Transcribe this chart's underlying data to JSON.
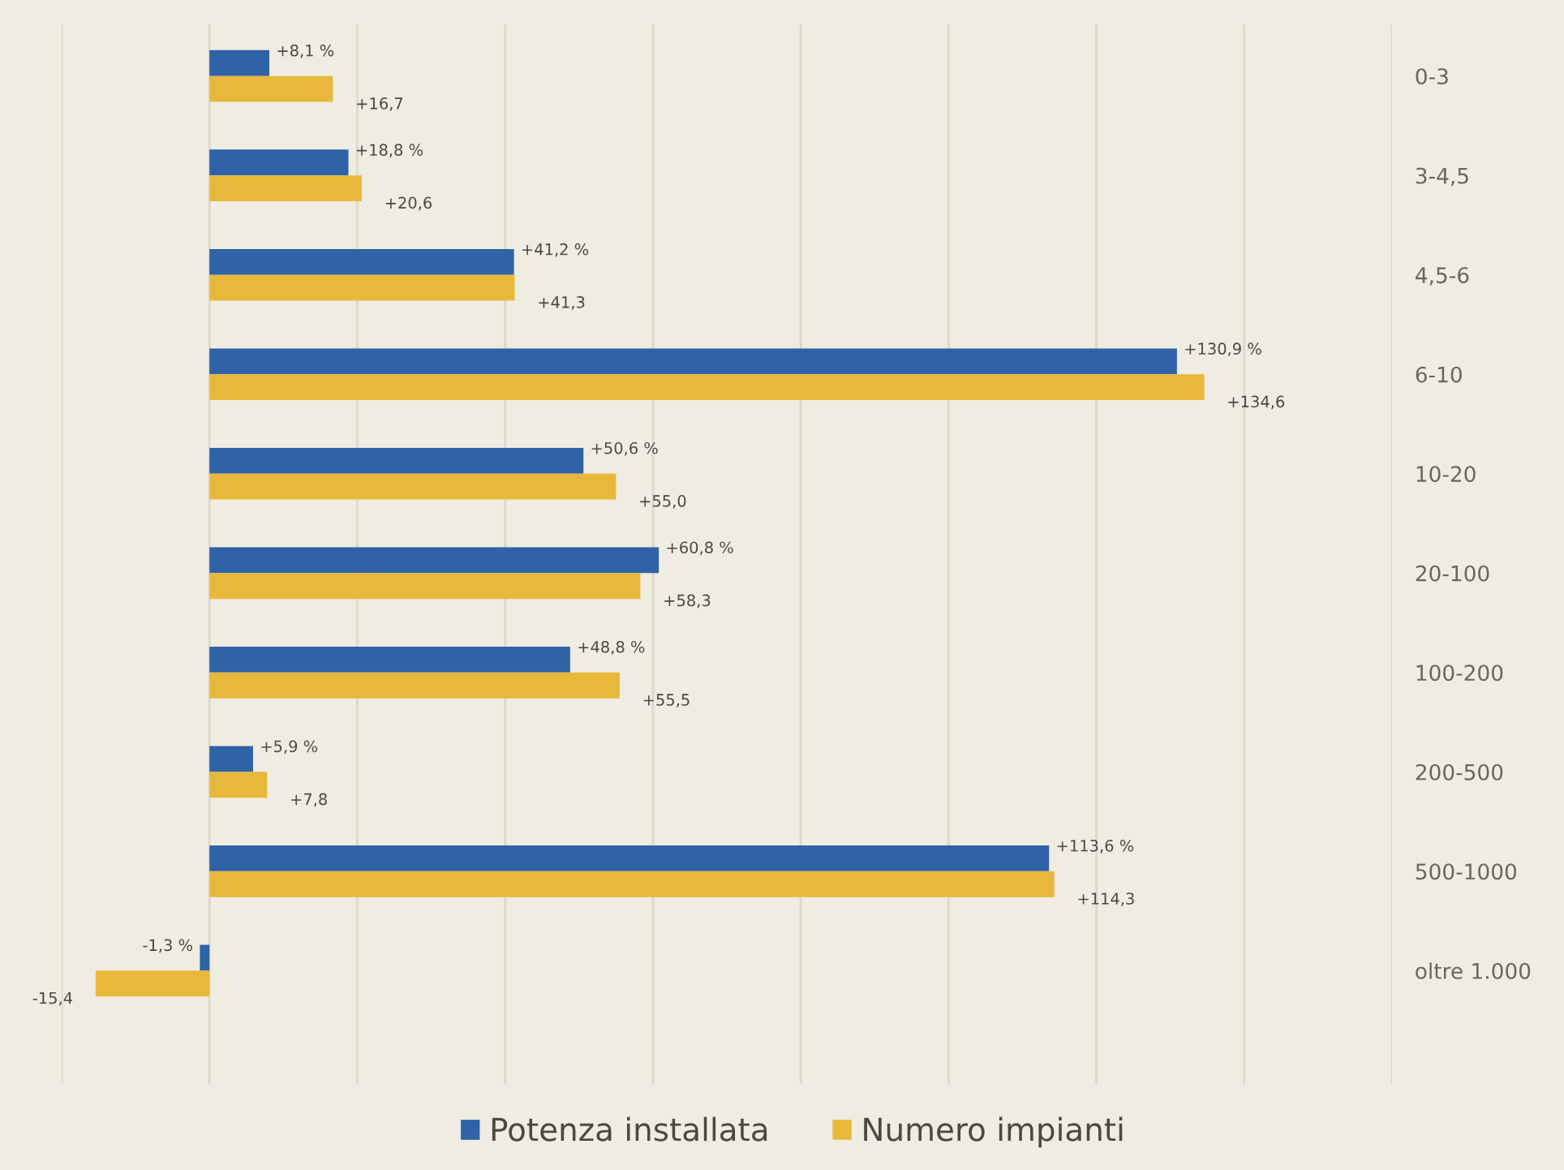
{
  "chart_data": {
    "type": "bar",
    "orientation": "horizontal",
    "categories": [
      "0-3",
      "3-4,5",
      "4,5-6",
      "6-10",
      "10-20",
      "20-100",
      "100-200",
      "200-500",
      "500-1000",
      "oltre 1.000"
    ],
    "series": [
      {
        "name": "Potenza installata",
        "color": "#2f62a6",
        "values": [
          8.1,
          18.8,
          41.2,
          130.9,
          50.6,
          60.8,
          48.8,
          5.9,
          113.6,
          -1.3
        ],
        "value_labels": [
          "+8,1 %",
          "+18,8 %",
          "+41,2 %",
          "+130,9 %",
          "+50,6 %",
          "+60,8 %",
          "+48,8 %",
          "+5,9 %",
          "+113,6 %",
          "-1,3 %"
        ]
      },
      {
        "name": "Numero impianti",
        "color": "#e8b83a",
        "values": [
          16.7,
          20.6,
          41.3,
          134.6,
          55.0,
          58.3,
          55.5,
          7.8,
          114.3,
          -15.4
        ],
        "value_labels": [
          "+16,7",
          "+20,6",
          "+41,3",
          "+134,6",
          "+55,0",
          "+58,3",
          "+55,5",
          "+7,8",
          "+114,3",
          "-15,4"
        ]
      }
    ],
    "xlim": [
      -20,
      160
    ],
    "xticks": [
      {
        "value": -20,
        "label": null
      },
      {
        "value": 0,
        "label": null
      },
      {
        "value": 20,
        "label": null
      },
      {
        "value": 40,
        "label": null
      },
      {
        "value": 60,
        "label": null
      },
      {
        "value": 80,
        "label": null
      },
      {
        "value": 100,
        "label": null
      },
      {
        "value": 120,
        "label": null
      },
      {
        "value": 140,
        "label": null
      },
      {
        "value": 160,
        "label": null
      }
    ],
    "grid": "x",
    "legend": "bottom",
    "tick_labels": "y"
  }
}
